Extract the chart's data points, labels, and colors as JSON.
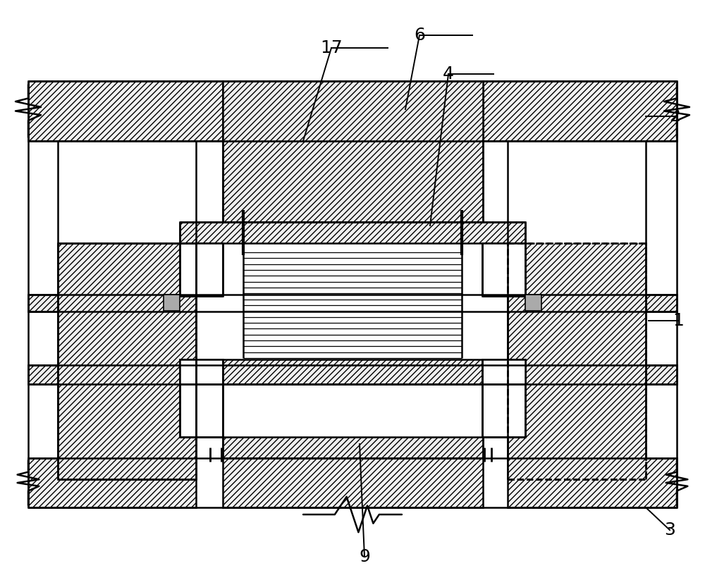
{
  "bg_color": "#ffffff",
  "lc": "#000000",
  "lw": 1.8,
  "lw_thick": 3.0,
  "label_fs": 18,
  "hatch_dense": "////",
  "hatch_light": "///",
  "gray_fill": "#b0b0b0"
}
